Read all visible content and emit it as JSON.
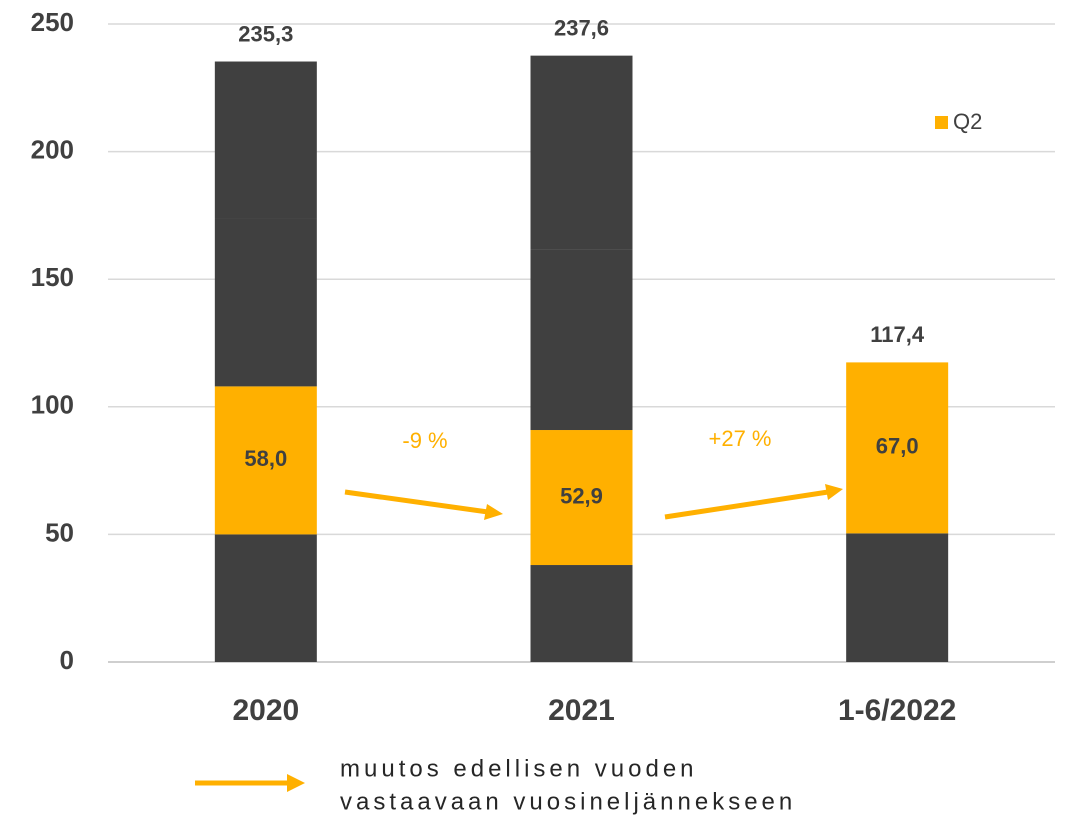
{
  "chart_data": {
    "type": "bar",
    "stacked": true,
    "categories": [
      "2020",
      "2021",
      "1-6/2022"
    ],
    "series": [
      {
        "color": "#404040",
        "values": [
          50.0,
          38.0,
          50.4
        ]
      },
      {
        "name": "Q2",
        "color": "#ffb000",
        "values": [
          58.0,
          52.9,
          67.0
        ],
        "value_labels": [
          "58,0",
          "52,9",
          "67,0"
        ]
      },
      {
        "color": "#404040",
        "values": [
          65.6,
          70.9,
          null
        ]
      },
      {
        "color": "#404040",
        "values": [
          61.7,
          75.8,
          null
        ]
      }
    ],
    "totals": [
      235.3,
      237.6,
      117.4
    ],
    "total_labels": [
      "235,3",
      "237,6",
      "117,4"
    ],
    "ylim": [
      0,
      250
    ],
    "yticks": [
      0,
      50,
      100,
      150,
      200,
      250
    ],
    "grid": true,
    "legend": "top-right",
    "annotations": [
      "-9 %",
      "+27 %"
    ],
    "footnote": [
      "muutos edellisen vuoden",
      "vastaavaan vuosineljännekseen"
    ]
  }
}
